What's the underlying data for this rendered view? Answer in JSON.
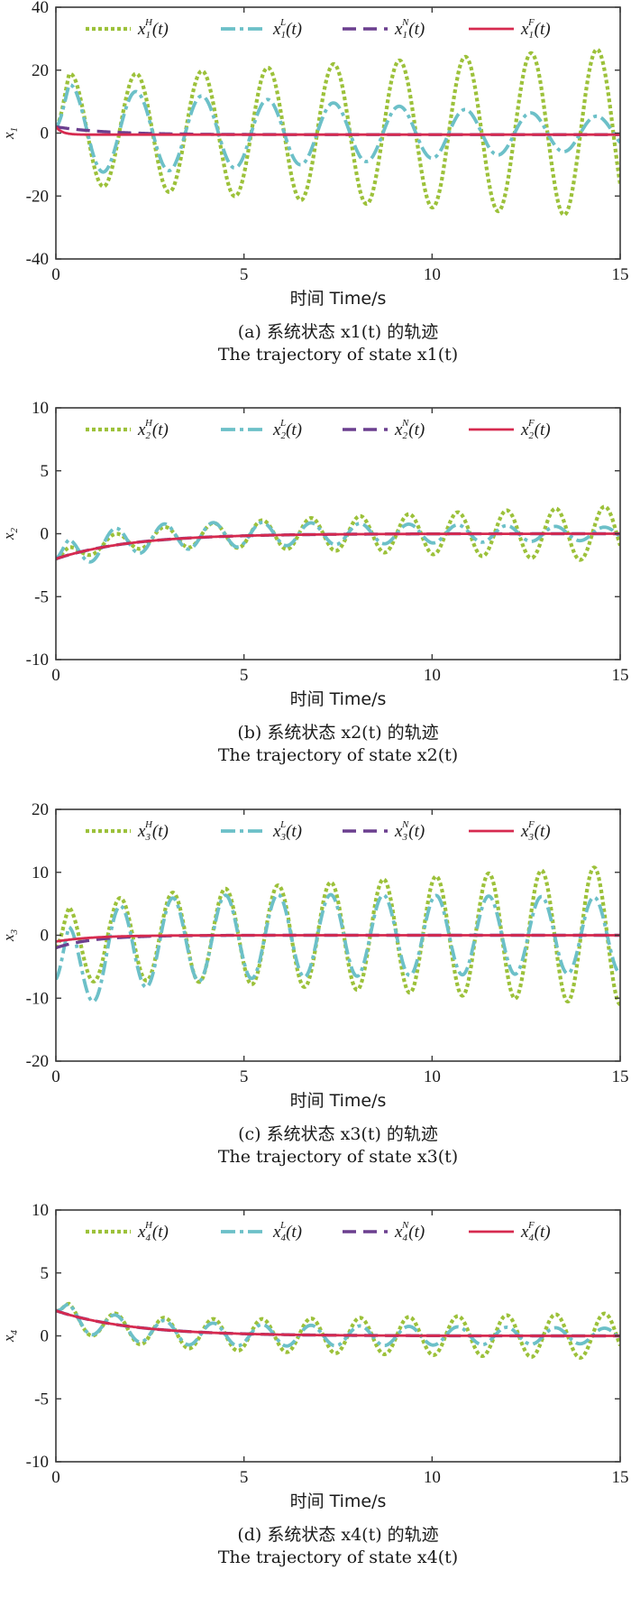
{
  "legend_series": [
    {
      "key": "H",
      "name": "x^H(t)",
      "color": "#9cc13a"
    },
    {
      "key": "L",
      "name": "x^L(t)",
      "color": "#6cc0c8"
    },
    {
      "key": "N",
      "name": "x^N(t)",
      "color": "#6b3f8f"
    },
    {
      "key": "F",
      "name": "x^F(t)",
      "color": "#d62a4f"
    }
  ],
  "chart_data": [
    {
      "type": "line",
      "panel": "a",
      "state": "x1",
      "xlabel": "时间 Time/s",
      "ylabel": "x1",
      "xlim": [
        0,
        15
      ],
      "ylim": [
        -40,
        40
      ],
      "xticks": [
        "0",
        "5",
        "10",
        "15"
      ],
      "yticks": [
        "40",
        "20",
        "0",
        "-20",
        "-40"
      ],
      "caption_cn": "(a) 系统状态 x1(t) 的轨迹",
      "caption_en": "The trajectory of state x1(t)",
      "series_model": {
        "H": {
          "initial": 2,
          "oscillation_period_s": 1.75,
          "amplitude_start": 17,
          "amplitude_end": 27
        },
        "L": {
          "initial": 2,
          "oscillation_period_s": 1.75,
          "amplitude_start": 14,
          "amplitude_end": 5
        },
        "N": {
          "initial": 2,
          "settling_time_s": 4,
          "final": -0.5
        },
        "F": {
          "initial": 2,
          "settling_time_s": 0.5,
          "final": -0.5
        }
      }
    },
    {
      "type": "line",
      "panel": "b",
      "state": "x2",
      "xlabel": "时间 Time/s",
      "ylabel": "x2",
      "xlim": [
        0,
        15
      ],
      "ylim": [
        -10,
        10
      ],
      "xticks": [
        "0",
        "5",
        "10",
        "15"
      ],
      "yticks": [
        "10",
        "5",
        "0",
        "-5",
        "-10"
      ],
      "caption_cn": "(b) 系统状态 x2(t) 的轨迹",
      "caption_en": "The trajectory of state x2(t)",
      "series_model": {
        "H": {
          "initial": -2,
          "oscillation_period_s": 1.3,
          "amplitude_start": 0.5,
          "amplitude_end": 2.2
        },
        "L": {
          "initial": -2,
          "oscillation_period_s": 1.3,
          "amplitude_start": 1.2,
          "amplitude_end": 0.5
        },
        "N": {
          "initial": -2,
          "settling_time_s": 6,
          "final": 0
        },
        "F": {
          "initial": -2,
          "settling_time_s": 6,
          "final": 0
        }
      }
    },
    {
      "type": "line",
      "panel": "c",
      "state": "x3",
      "xlabel": "时间 Time/s",
      "ylabel": "x3",
      "xlim": [
        0,
        15
      ],
      "ylim": [
        -20,
        20
      ],
      "xticks": [
        "0",
        "5",
        "10",
        "15"
      ],
      "yticks": [
        "20",
        "10",
        "0",
        "-10",
        "-20"
      ],
      "caption_cn": "(c) 系统状态 x3(t) 的轨迹",
      "caption_en": "The trajectory of state x3(t)",
      "series_model": {
        "H": {
          "initial": -2,
          "oscillation_period_s": 1.4,
          "amplitude_start": 6,
          "amplitude_end": 11
        },
        "L": {
          "initial": -7,
          "oscillation_period_s": 1.4,
          "amplitude_start": 7,
          "amplitude_end": 6
        },
        "N": {
          "initial": -2,
          "settling_time_s": 3,
          "final": 0
        },
        "F": {
          "initial": -1,
          "settling_time_s": 3,
          "final": 0
        }
      }
    },
    {
      "type": "line",
      "panel": "d",
      "state": "x4",
      "xlabel": "时间 Time/s",
      "ylabel": "x4",
      "xlim": [
        0,
        15
      ],
      "ylim": [
        -10,
        10
      ],
      "xticks": [
        "0",
        "5",
        "10",
        "15"
      ],
      "yticks": [
        "10",
        "5",
        "0",
        "-5",
        "-10"
      ],
      "caption_cn": "(d) 系统状态 x4(t) 的轨迹",
      "caption_en": "The trajectory of state x4(t)",
      "series_model": {
        "H": {
          "initial": 2,
          "oscillation_period_s": 1.3,
          "amplitude_start": 1,
          "amplitude_end": 1.8
        },
        "L": {
          "initial": 2,
          "oscillation_period_s": 1.3,
          "amplitude_start": 1,
          "amplitude_end": 0.6
        },
        "N": {
          "initial": 2,
          "settling_time_s": 6,
          "final": 0
        },
        "F": {
          "initial": 2,
          "settling_time_s": 6,
          "final": 0
        }
      }
    }
  ]
}
